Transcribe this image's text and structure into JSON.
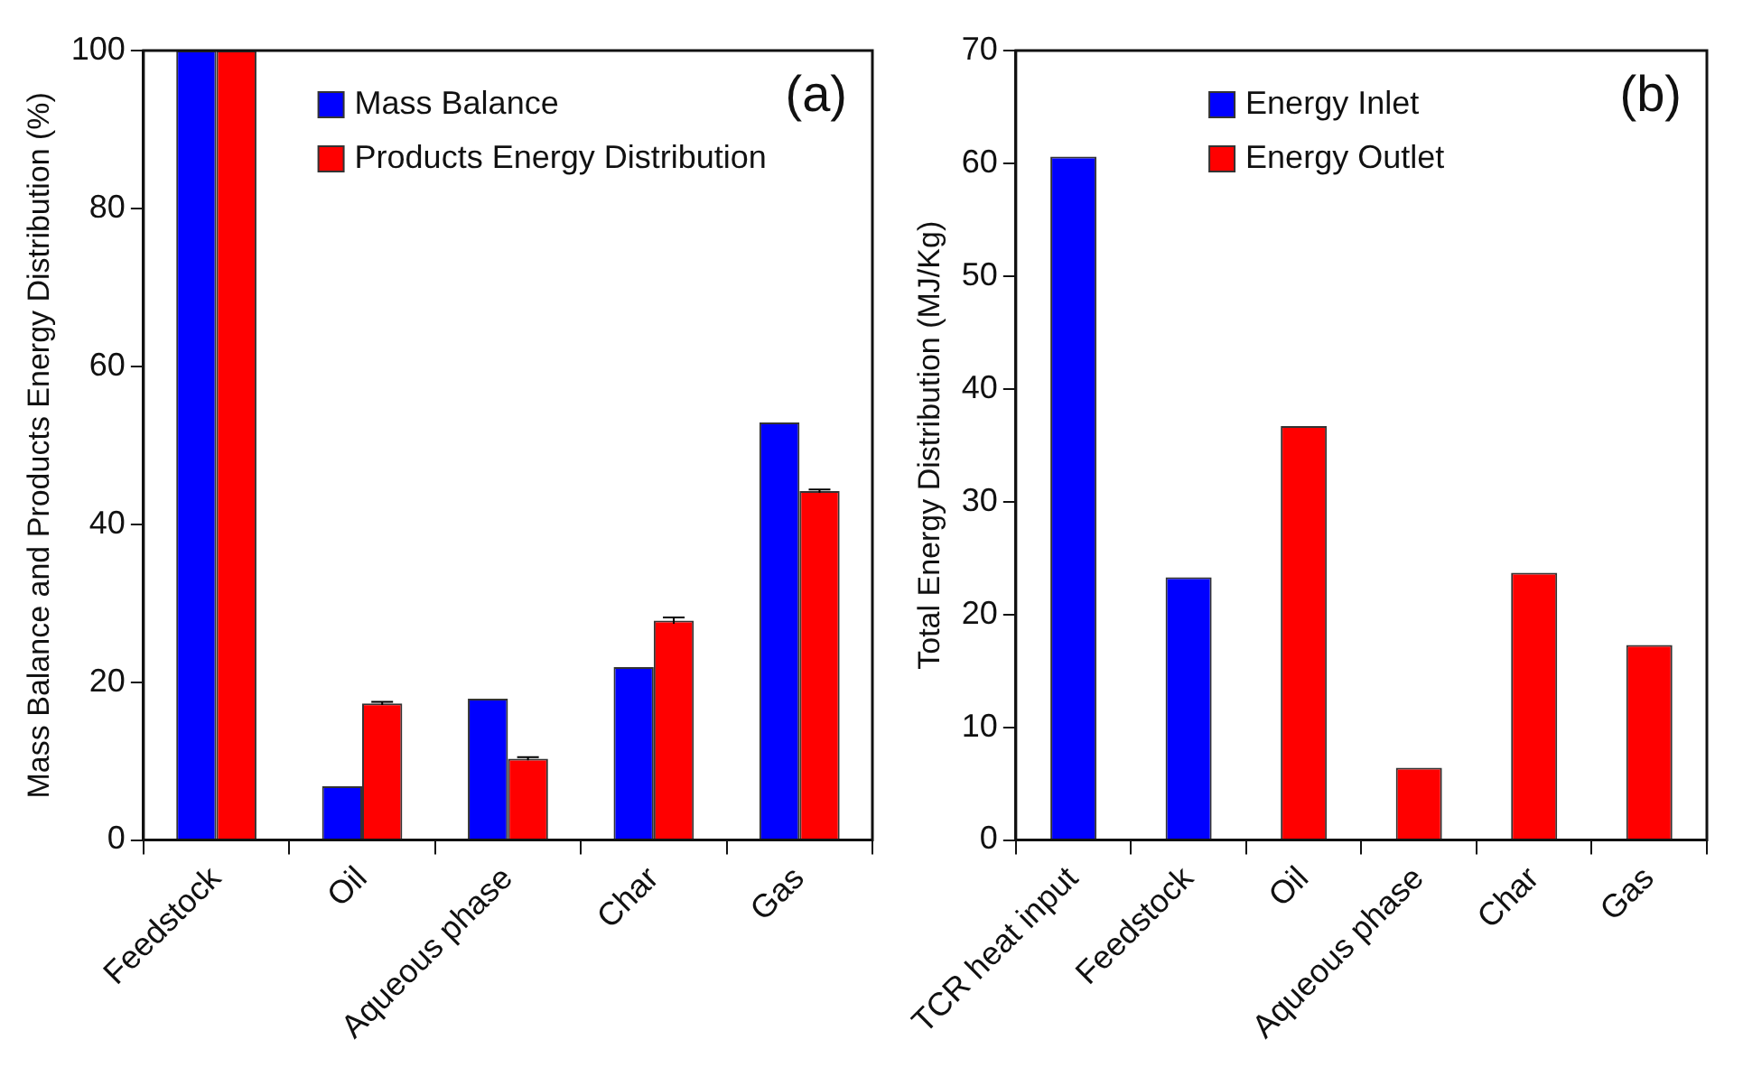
{
  "chart_data": [
    {
      "type": "bar",
      "ylabel": "Mass Balance and Products Energy Distribution (%)",
      "categories": [
        "Feedstock",
        "Oil",
        "Aqueous phase",
        "Char",
        "Gas"
      ],
      "series": [
        {
          "name": "Mass Balance",
          "color": "#0000ff",
          "values": [
            100,
            6.8,
            17.9,
            21.9,
            52.9
          ]
        },
        {
          "name": "Products Energy Distribution",
          "color": "#ff0000",
          "values": [
            100,
            17.3,
            10.3,
            27.8,
            44.2
          ],
          "errors": [
            null,
            0.2,
            0.2,
            0.4,
            0.2
          ]
        }
      ],
      "ylim": [
        0,
        100
      ],
      "yticks": [
        0,
        20,
        40,
        60,
        80,
        100
      ],
      "grid": false,
      "legend": "top",
      "annotations": [
        "(a)"
      ]
    },
    {
      "type": "bar",
      "ylabel": "Total Energy Distribution (MJ/Kg)",
      "categories": [
        "TCR heat input",
        "Feedstock",
        "Oil",
        "Aqueous phase",
        "Char",
        "Gas"
      ],
      "series": [
        {
          "name": "Energy Inlet",
          "color": "#0000ff",
          "values": [
            60.6,
            23.3,
            null,
            null,
            null,
            null
          ]
        },
        {
          "name": "Energy Outlet",
          "color": "#ff0000",
          "values": [
            null,
            null,
            36.7,
            6.4,
            23.7,
            17.3
          ]
        }
      ],
      "ylim": [
        0,
        70
      ],
      "yticks": [
        0,
        10,
        20,
        30,
        40,
        50,
        60,
        70
      ],
      "grid": false,
      "legend": "top",
      "annotations": [
        "(b)"
      ]
    }
  ]
}
